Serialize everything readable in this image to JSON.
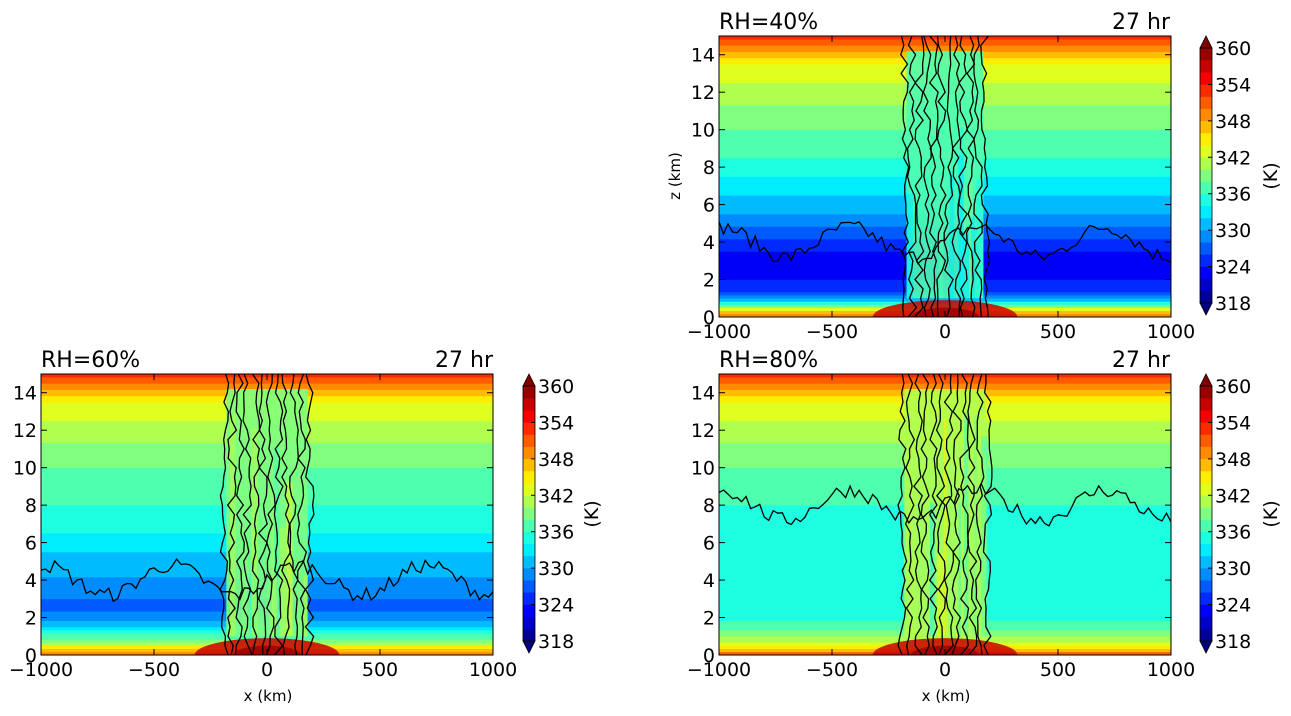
{
  "chart_data": [
    {
      "type": "heatmap",
      "title_left": "RH=40%",
      "title_right": "27 hr",
      "xlabel": "",
      "ylabel": "z (km)",
      "xlim": [
        -1000,
        1000
      ],
      "ylim": [
        0,
        15
      ],
      "x_ticks": [
        "−1000",
        "−500",
        "0",
        "500",
        "1000"
      ],
      "y_ticks": [
        "0",
        "2",
        "4",
        "6",
        "8",
        "10",
        "12",
        "14"
      ],
      "colorbar_label": "(K)",
      "colorbar_ticks": [
        "318",
        "324",
        "330",
        "336",
        "342",
        "348",
        "354",
        "360"
      ],
      "colorbar_range": [
        318,
        360
      ],
      "value_by_height": [
        {
          "z": 0,
          "value": 351
        },
        {
          "z": 0.3,
          "value": 345
        },
        {
          "z": 0.6,
          "value": 338
        },
        {
          "z": 1.0,
          "value": 330
        },
        {
          "z": 1.5,
          "value": 325
        },
        {
          "z": 2.5,
          "value": 323
        },
        {
          "z": 3.5,
          "value": 324
        },
        {
          "z": 4.5,
          "value": 327
        },
        {
          "z": 5.5,
          "value": 330
        },
        {
          "z": 7,
          "value": 333
        },
        {
          "z": 8.5,
          "value": 336
        },
        {
          "z": 10,
          "value": 338
        },
        {
          "z": 12,
          "value": 341
        },
        {
          "z": 13.5,
          "value": 344
        },
        {
          "z": 14.3,
          "value": 349
        },
        {
          "z": 15,
          "value": 353
        }
      ],
      "core_value": 336,
      "core_halfwidth_km": 170,
      "surface_hot_value": 356
    },
    {
      "type": "heatmap",
      "title_left": "RH=60%",
      "title_right": "27 hr",
      "xlabel": "x (km)",
      "ylabel": "",
      "xlim": [
        -1000,
        1000
      ],
      "ylim": [
        0,
        15
      ],
      "x_ticks": [
        "−1000",
        "−500",
        "0",
        "500",
        "1000"
      ],
      "y_ticks": [
        "0",
        "2",
        "4",
        "6",
        "8",
        "10",
        "12",
        "14"
      ],
      "colorbar_label": "(K)",
      "colorbar_ticks": [
        "318",
        "324",
        "330",
        "336",
        "342",
        "348",
        "354",
        "360"
      ],
      "colorbar_range": [
        318,
        360
      ],
      "value_by_height": [
        {
          "z": 0,
          "value": 351
        },
        {
          "z": 0.3,
          "value": 346
        },
        {
          "z": 0.7,
          "value": 340
        },
        {
          "z": 1.2,
          "value": 335
        },
        {
          "z": 1.8,
          "value": 330
        },
        {
          "z": 2.5,
          "value": 327
        },
        {
          "z": 3.5,
          "value": 329
        },
        {
          "z": 5,
          "value": 331
        },
        {
          "z": 6.5,
          "value": 334
        },
        {
          "z": 8,
          "value": 336
        },
        {
          "z": 10,
          "value": 338
        },
        {
          "z": 12,
          "value": 341
        },
        {
          "z": 13.5,
          "value": 344
        },
        {
          "z": 14.3,
          "value": 349
        },
        {
          "z": 15,
          "value": 353
        }
      ],
      "core_value": 338,
      "core_halfwidth_km": 180,
      "surface_hot_value": 356
    },
    {
      "type": "heatmap",
      "title_left": "RH=80%",
      "title_right": "27 hr",
      "xlabel": "x (km)",
      "ylabel": "",
      "xlim": [
        -1000,
        1000
      ],
      "ylim": [
        0,
        15
      ],
      "x_ticks": [
        "−1000",
        "−500",
        "0",
        "500",
        "1000"
      ],
      "y_ticks": [
        "0",
        "2",
        "4",
        "6",
        "8",
        "10",
        "12",
        "14"
      ],
      "colorbar_label": "(K)",
      "colorbar_ticks": [
        "318",
        "324",
        "330",
        "336",
        "342",
        "348",
        "354",
        "360"
      ],
      "colorbar_range": [
        318,
        360
      ],
      "value_by_height": [
        {
          "z": 0,
          "value": 352
        },
        {
          "z": 0.3,
          "value": 347
        },
        {
          "z": 0.7,
          "value": 342
        },
        {
          "z": 1.3,
          "value": 338
        },
        {
          "z": 2.2,
          "value": 335
        },
        {
          "z": 4,
          "value": 334
        },
        {
          "z": 6,
          "value": 334
        },
        {
          "z": 8,
          "value": 336
        },
        {
          "z": 10,
          "value": 338
        },
        {
          "z": 12,
          "value": 341
        },
        {
          "z": 13.5,
          "value": 344
        },
        {
          "z": 14.3,
          "value": 349
        },
        {
          "z": 15,
          "value": 353
        }
      ],
      "core_value": 340,
      "core_halfwidth_km": 180,
      "surface_hot_value": 356
    }
  ]
}
